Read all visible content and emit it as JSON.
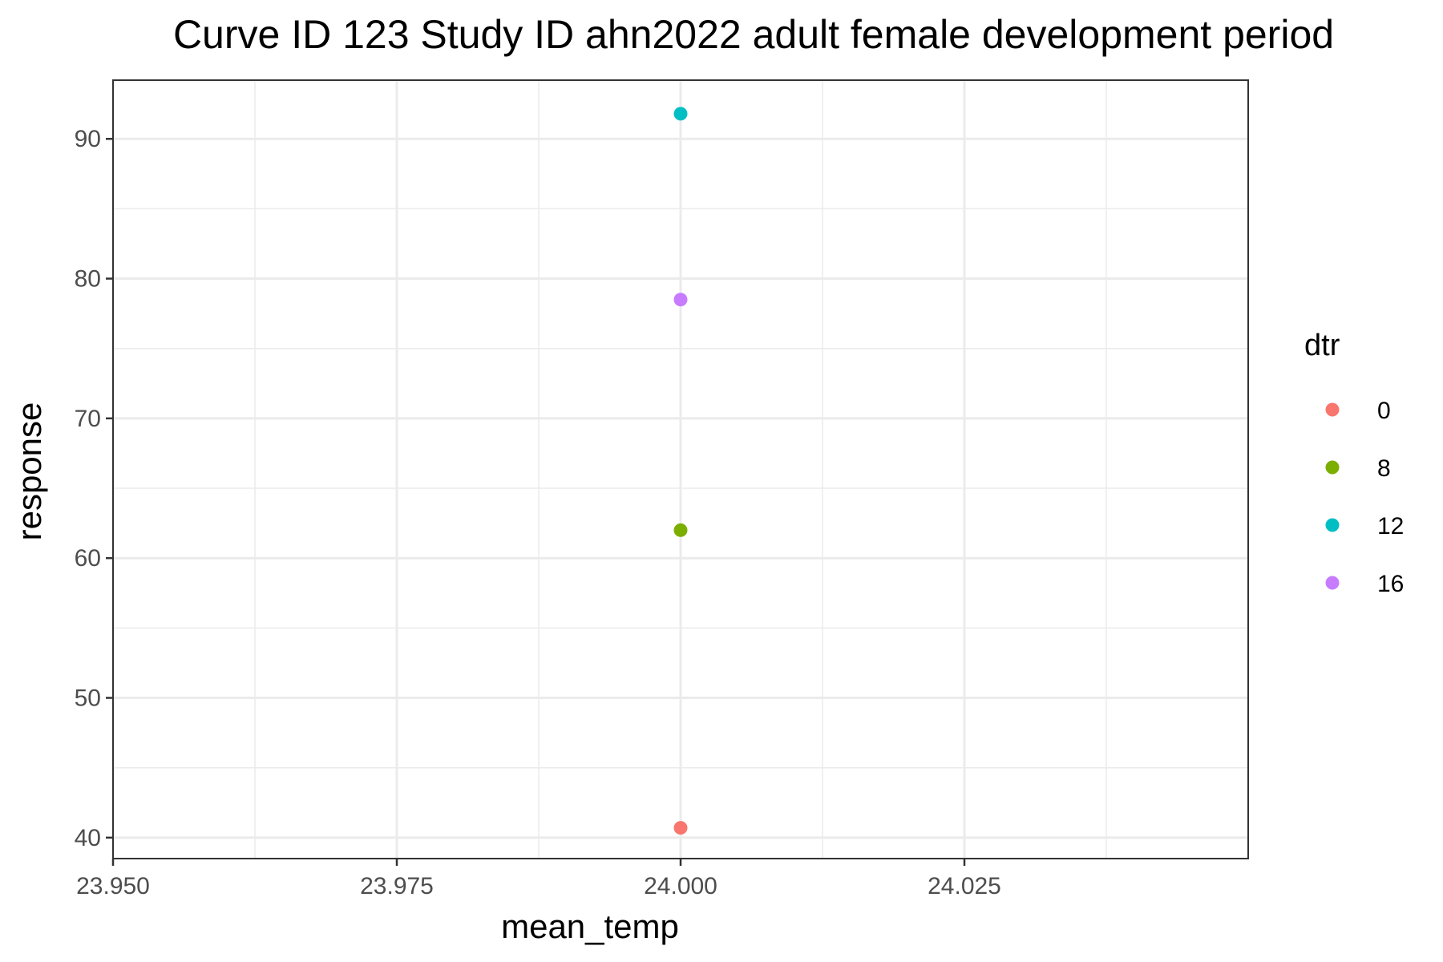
{
  "chart_data": {
    "type": "scatter",
    "title": "Curve ID 123 Study ID ahn2022 adult female development period",
    "xlabel": "mean_temp",
    "ylabel": "response",
    "xlim": [
      23.95,
      24.05
    ],
    "ylim": [
      38.5,
      94.2
    ],
    "x_ticks": [
      23.95,
      23.975,
      24.0,
      24.025
    ],
    "x_tick_labels": [
      "23.950",
      "23.975",
      "24.000",
      "24.025"
    ],
    "x_minor_ticks": [
      23.9625,
      23.9875,
      24.0125,
      24.0375
    ],
    "y_ticks": [
      40,
      50,
      60,
      70,
      80,
      90
    ],
    "y_tick_labels": [
      "40",
      "50",
      "60",
      "70",
      "80",
      "90"
    ],
    "y_minor_ticks": [
      45,
      55,
      65,
      75,
      85
    ],
    "grid": true,
    "legend": {
      "title": "dtr",
      "placement": "right",
      "entries": [
        {
          "label": "0",
          "color": "#F8766D"
        },
        {
          "label": "8",
          "color": "#7CAE00"
        },
        {
          "label": "12",
          "color": "#00BFC4"
        },
        {
          "label": "16",
          "color": "#C77CFF"
        }
      ]
    },
    "series": [
      {
        "name": "0",
        "color": "#F8766D",
        "points": [
          {
            "x": 24.0,
            "y": 40.7
          }
        ]
      },
      {
        "name": "8",
        "color": "#7CAE00",
        "points": [
          {
            "x": 24.0,
            "y": 62.0
          }
        ]
      },
      {
        "name": "12",
        "color": "#00BFC4",
        "points": [
          {
            "x": 24.0,
            "y": 91.8
          }
        ]
      },
      {
        "name": "16",
        "color": "#C77CFF",
        "points": [
          {
            "x": 24.0,
            "y": 78.5
          }
        ]
      }
    ]
  }
}
